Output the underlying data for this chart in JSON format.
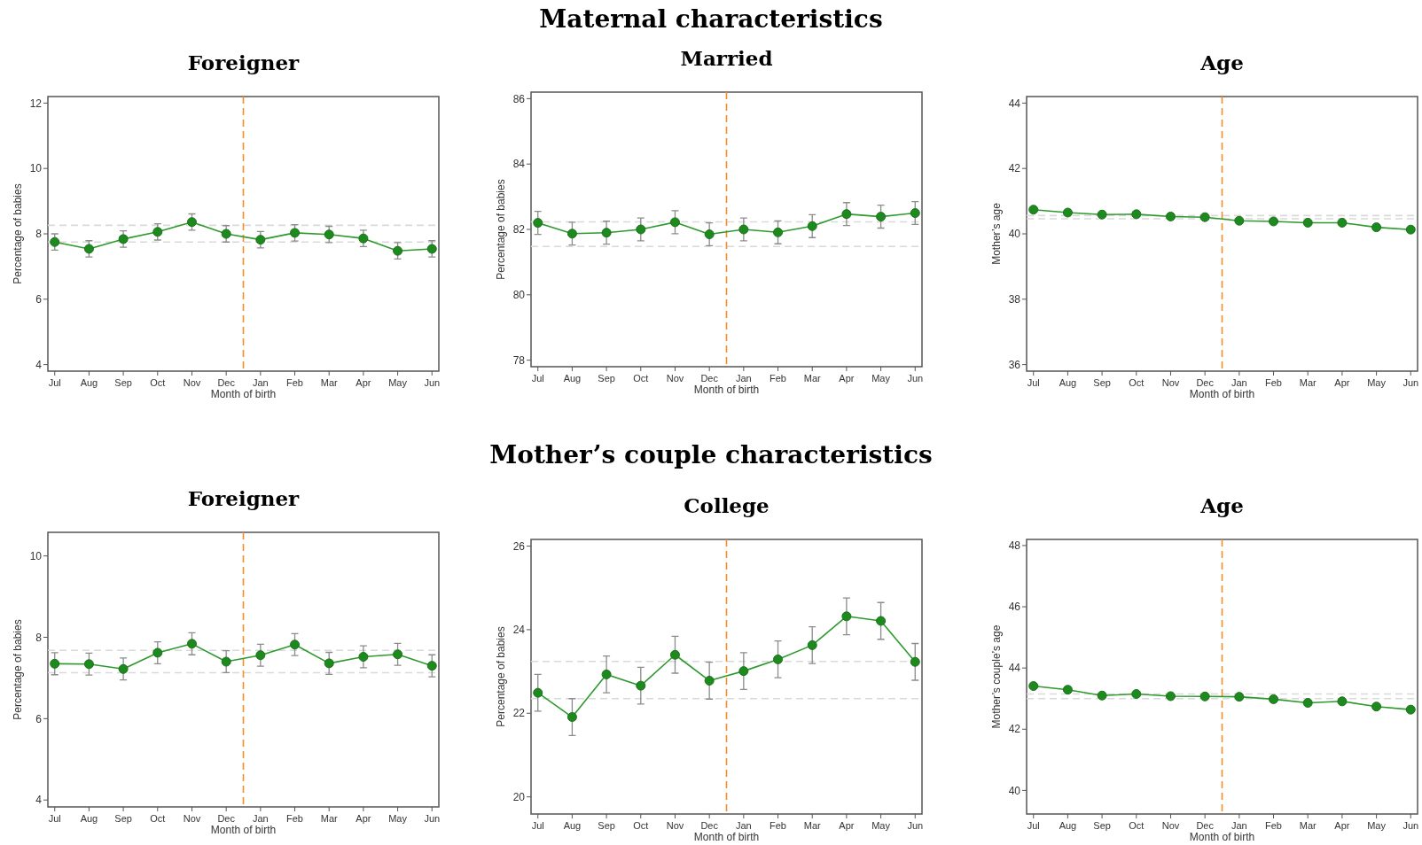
{
  "chart_data": [
    {
      "type": "line",
      "title": "Foreigner",
      "xlabel": "Month of birth",
      "ylabel": "Percentage of babies",
      "annotations": [
        "Maternal characteristics"
      ],
      "marker": "circle",
      "line_style": "solid",
      "categories": [
        "Jul",
        "Aug",
        "Sep",
        "Oct",
        "Nov",
        "Dec",
        "Jan",
        "Feb",
        "Mar",
        "Apr",
        "May",
        "Jun"
      ],
      "ylim": [
        3.8,
        12.2
      ],
      "yticks": [
        4,
        6,
        8,
        10,
        12
      ],
      "series": [
        {
          "color": "#2e9a2e",
          "values": [
            7.75,
            7.54,
            7.84,
            8.06,
            8.36,
            8.0,
            7.82,
            8.03,
            7.98,
            7.86,
            7.48,
            7.54
          ],
          "errors": [
            0.25,
            0.25,
            0.25,
            0.25,
            0.25,
            0.25,
            0.25,
            0.25,
            0.25,
            0.25,
            0.25,
            0.25
          ]
        }
      ],
      "ref_lines": [
        {
          "axis": "y",
          "value": 8.26,
          "color": "#d9d9d9",
          "line_style": "dashed"
        },
        {
          "axis": "y",
          "value": 7.75,
          "color": "#d9d9d9",
          "line_style": "dashed"
        }
      ]
    },
    {
      "type": "line",
      "title": "Married",
      "xlabel": "Month of birth",
      "ylabel": "Percentage of babies",
      "marker": "circle",
      "line_style": "solid",
      "categories": [
        "Jul",
        "Aug",
        "Sep",
        "Oct",
        "Nov",
        "Dec",
        "Jan",
        "Feb",
        "Mar",
        "Apr",
        "May",
        "Jun"
      ],
      "ylim": [
        77.8,
        86.2
      ],
      "yticks": [
        78,
        80,
        82,
        84,
        86
      ],
      "series": [
        {
          "color": "#2e9a2e",
          "values": [
            82.2,
            81.87,
            81.9,
            82.0,
            82.22,
            81.85,
            82.0,
            81.91,
            82.1,
            82.47,
            82.39,
            82.5
          ],
          "errors": [
            0.35,
            0.35,
            0.35,
            0.35,
            0.35,
            0.35,
            0.35,
            0.35,
            0.35,
            0.35,
            0.35,
            0.35
          ]
        }
      ],
      "ref_lines": [
        {
          "axis": "y",
          "value": 82.23,
          "color": "#d9d9d9",
          "line_style": "dashed"
        },
        {
          "axis": "y",
          "value": 81.48,
          "color": "#d9d9d9",
          "line_style": "dashed"
        }
      ]
    },
    {
      "type": "line",
      "title": "Age",
      "xlabel": "Month of birth",
      "ylabel": "Mother’s age",
      "marker": "circle",
      "line_style": "solid",
      "categories": [
        "Jul",
        "Aug",
        "Sep",
        "Oct",
        "Nov",
        "Dec",
        "Jan",
        "Feb",
        "Mar",
        "Apr",
        "May",
        "Jun"
      ],
      "ylim": [
        35.8,
        44.2
      ],
      "yticks": [
        36,
        38,
        40,
        42,
        44
      ],
      "series": [
        {
          "color": "#2e9a2e",
          "values": [
            40.74,
            40.65,
            40.59,
            40.6,
            40.53,
            40.51,
            40.4,
            40.38,
            40.34,
            40.34,
            40.2,
            40.13
          ]
        }
      ],
      "ref_lines": [
        {
          "axis": "y",
          "value": 40.56,
          "color": "#d9d9d9",
          "line_style": "dashed"
        },
        {
          "axis": "y",
          "value": 40.46,
          "color": "#d9d9d9",
          "line_style": "dashed"
        }
      ]
    },
    {
      "type": "line",
      "title": "Foreigner",
      "xlabel": "Month of birth",
      "ylabel": "Percentage of babies",
      "annotations": [
        "Mother’s couple characteristics"
      ],
      "marker": "circle",
      "line_style": "solid",
      "categories": [
        "Jul",
        "Aug",
        "Sep",
        "Oct",
        "Nov",
        "Dec",
        "Jan",
        "Feb",
        "Mar",
        "Apr",
        "May",
        "Jun"
      ],
      "ylim": [
        3.83,
        10.58
      ],
      "yticks": [
        4,
        6,
        8,
        10
      ],
      "series": [
        {
          "color": "#2e9a2e",
          "values": [
            7.35,
            7.34,
            7.22,
            7.62,
            7.84,
            7.4,
            7.56,
            7.82,
            7.36,
            7.52,
            7.58,
            7.3
          ],
          "errors": [
            0.27,
            0.27,
            0.27,
            0.27,
            0.27,
            0.27,
            0.27,
            0.27,
            0.27,
            0.27,
            0.27,
            0.27
          ]
        }
      ],
      "ref_lines": [
        {
          "axis": "y",
          "value": 7.68,
          "color": "#d9d9d9",
          "line_style": "dashed"
        },
        {
          "axis": "y",
          "value": 7.13,
          "color": "#d9d9d9",
          "line_style": "dashed"
        }
      ]
    },
    {
      "type": "line",
      "title": "College",
      "xlabel": "Month of birth",
      "ylabel": "Percentage of babies",
      "marker": "circle",
      "line_style": "solid",
      "categories": [
        "Jul",
        "Aug",
        "Sep",
        "Oct",
        "Nov",
        "Dec",
        "Jan",
        "Feb",
        "Mar",
        "Apr",
        "May",
        "Jun"
      ],
      "ylim": [
        19.59,
        26.16
      ],
      "yticks": [
        20,
        22,
        24,
        26
      ],
      "series": [
        {
          "color": "#2e9a2e",
          "values": [
            22.49,
            21.91,
            22.93,
            22.66,
            23.4,
            22.78,
            23.01,
            23.29,
            23.63,
            24.32,
            24.21,
            23.23
          ],
          "errors": [
            0.44,
            0.44,
            0.44,
            0.44,
            0.44,
            0.44,
            0.44,
            0.44,
            0.44,
            0.44,
            0.44,
            0.44
          ]
        }
      ],
      "ref_lines": [
        {
          "axis": "y",
          "value": 23.24,
          "color": "#d9d9d9",
          "line_style": "dashed"
        },
        {
          "axis": "y",
          "value": 22.35,
          "color": "#d9d9d9",
          "line_style": "dashed"
        }
      ]
    },
    {
      "type": "line",
      "title": "Age",
      "xlabel": "Month of birth",
      "ylabel": "Mother’s couple’s age",
      "marker": "circle",
      "line_style": "solid",
      "categories": [
        "Jul",
        "Aug",
        "Sep",
        "Oct",
        "Nov",
        "Dec",
        "Jan",
        "Feb",
        "Mar",
        "Apr",
        "May",
        "Jun"
      ],
      "ylim": [
        39.23,
        48.2
      ],
      "yticks": [
        40,
        42,
        44,
        46,
        48
      ],
      "series": [
        {
          "color": "#2e9a2e",
          "values": [
            43.41,
            43.29,
            43.1,
            43.15,
            43.08,
            43.07,
            43.06,
            42.98,
            42.86,
            42.91,
            42.74,
            42.64
          ]
        }
      ],
      "ref_lines": [
        {
          "axis": "y",
          "value": 43.15,
          "color": "#d9d9d9",
          "line_style": "dashed"
        },
        {
          "axis": "y",
          "value": 43.0,
          "color": "#d9d9d9",
          "line_style": "dashed"
        }
      ]
    }
  ]
}
